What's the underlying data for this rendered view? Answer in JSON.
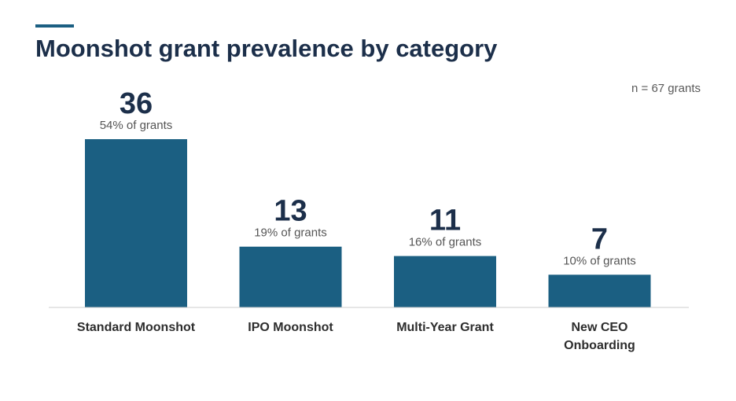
{
  "header": {
    "title": "Moonshot grant prevalence by category"
  },
  "note": "n = 67 grants",
  "colors": {
    "accent": "#1b5f82",
    "bar": "#1b5f82",
    "title": "#1c2f4a",
    "axis": "#cccccc"
  },
  "chart_data": {
    "type": "bar",
    "title": "Moonshot grant prevalence by category",
    "categories": [
      [
        "Standard Moonshot"
      ],
      [
        "IPO Moonshot"
      ],
      [
        "Multi-Year Grant"
      ],
      [
        "New CEO",
        "Onboarding"
      ]
    ],
    "values": [
      36,
      13,
      11,
      7
    ],
    "data_labels": [
      "36",
      "13",
      "11",
      "7"
    ],
    "sublabels": [
      "54% of grants",
      "19% of grants",
      "16% of grants",
      "10% of grants"
    ],
    "xlabel": "",
    "ylabel": "",
    "ylim": [
      0,
      36
    ],
    "grid": false,
    "legend": "none"
  }
}
